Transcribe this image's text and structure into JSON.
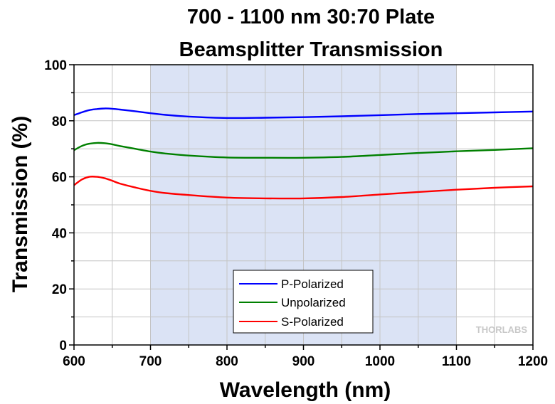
{
  "chart_data": {
    "type": "line",
    "title_line1": "700 - 1100 nm 30:70 Plate",
    "title_line2": "Beamsplitter Transmission",
    "xlabel": "Wavelength (nm)",
    "ylabel": "Transmission (%)",
    "xlim": [
      600,
      1200
    ],
    "ylim": [
      0,
      100
    ],
    "xticks": [
      600,
      700,
      800,
      900,
      1000,
      1100,
      1200
    ],
    "yticks": [
      0,
      20,
      40,
      60,
      80,
      100
    ],
    "grid": true,
    "shaded_range": [
      700,
      1100
    ],
    "shaded_color": "#dbe3f5",
    "legend_position": "bottom-center",
    "watermark": "THORLABS",
    "series": [
      {
        "name": "P-Polarized",
        "color": "#0000ff",
        "x": [
          600,
          610,
          620,
          630,
          640,
          650,
          660,
          680,
          700,
          720,
          750,
          800,
          850,
          900,
          950,
          1000,
          1050,
          1100,
          1150,
          1200
        ],
        "y": [
          82.0,
          83.0,
          83.8,
          84.2,
          84.4,
          84.3,
          84.0,
          83.4,
          82.7,
          82.1,
          81.5,
          81.0,
          81.1,
          81.3,
          81.6,
          82.0,
          82.4,
          82.7,
          83.0,
          83.3
        ]
      },
      {
        "name": "Unpolarized",
        "color": "#008000",
        "x": [
          600,
          610,
          620,
          630,
          640,
          650,
          660,
          680,
          700,
          720,
          750,
          800,
          850,
          900,
          950,
          1000,
          1050,
          1100,
          1150,
          1200
        ],
        "y": [
          69.5,
          71.0,
          71.8,
          72.1,
          72.0,
          71.6,
          71.0,
          70.0,
          69.0,
          68.3,
          67.6,
          66.9,
          66.8,
          66.8,
          67.1,
          67.8,
          68.5,
          69.1,
          69.6,
          70.2
        ]
      },
      {
        "name": "S-Polarized",
        "color": "#ff0000",
        "x": [
          600,
          610,
          620,
          630,
          640,
          650,
          660,
          680,
          700,
          720,
          750,
          800,
          850,
          900,
          950,
          1000,
          1050,
          1100,
          1150,
          1200
        ],
        "y": [
          57.0,
          59.0,
          60.0,
          60.0,
          59.5,
          58.6,
          57.6,
          56.2,
          55.0,
          54.2,
          53.5,
          52.6,
          52.3,
          52.3,
          52.8,
          53.7,
          54.6,
          55.4,
          56.1,
          56.6
        ]
      }
    ]
  }
}
